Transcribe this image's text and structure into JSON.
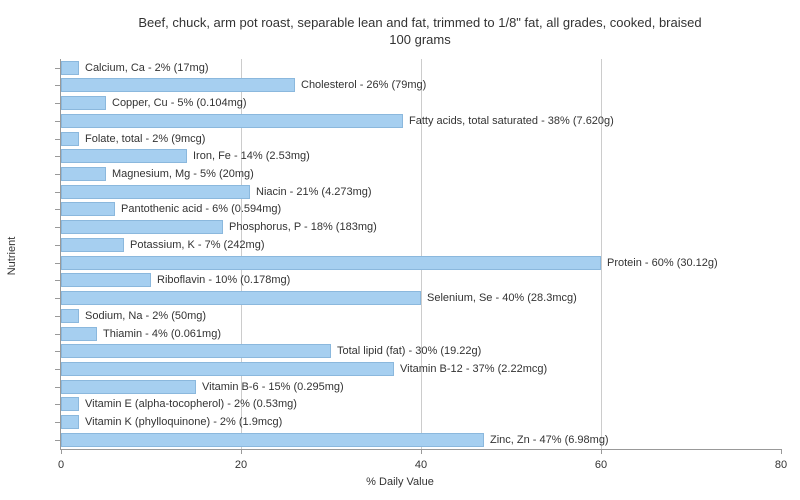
{
  "chart": {
    "type": "bar-horizontal",
    "title_line1": "Beef, chuck, arm pot roast, separable lean and fat, trimmed to 1/8\" fat, all grades, cooked, braised",
    "title_line2": "100 grams",
    "xlabel": "% Daily Value",
    "ylabel": "Nutrient",
    "xlim": [
      0,
      80
    ],
    "xtick_step": 20,
    "xticks": [
      0,
      20,
      40,
      60,
      80
    ],
    "bar_color": "#a6cff0",
    "bar_border_color": "#8bb8dd",
    "grid_color": "#cccccc",
    "axis_color": "#999999",
    "background_color": "#ffffff",
    "text_color": "#333333",
    "title_fontsize": 13,
    "label_fontsize": 11,
    "nutrients": [
      {
        "label": "Calcium, Ca - 2% (17mg)",
        "value": 2
      },
      {
        "label": "Cholesterol - 26% (79mg)",
        "value": 26
      },
      {
        "label": "Copper, Cu - 5% (0.104mg)",
        "value": 5
      },
      {
        "label": "Fatty acids, total saturated - 38% (7.620g)",
        "value": 38
      },
      {
        "label": "Folate, total - 2% (9mcg)",
        "value": 2
      },
      {
        "label": "Iron, Fe - 14% (2.53mg)",
        "value": 14
      },
      {
        "label": "Magnesium, Mg - 5% (20mg)",
        "value": 5
      },
      {
        "label": "Niacin - 21% (4.273mg)",
        "value": 21
      },
      {
        "label": "Pantothenic acid - 6% (0.594mg)",
        "value": 6
      },
      {
        "label": "Phosphorus, P - 18% (183mg)",
        "value": 18
      },
      {
        "label": "Potassium, K - 7% (242mg)",
        "value": 7
      },
      {
        "label": "Protein - 60% (30.12g)",
        "value": 60
      },
      {
        "label": "Riboflavin - 10% (0.178mg)",
        "value": 10
      },
      {
        "label": "Selenium, Se - 40% (28.3mcg)",
        "value": 40
      },
      {
        "label": "Sodium, Na - 2% (50mg)",
        "value": 2
      },
      {
        "label": "Thiamin - 4% (0.061mg)",
        "value": 4
      },
      {
        "label": "Total lipid (fat) - 30% (19.22g)",
        "value": 30
      },
      {
        "label": "Vitamin B-12 - 37% (2.22mcg)",
        "value": 37
      },
      {
        "label": "Vitamin B-6 - 15% (0.295mg)",
        "value": 15
      },
      {
        "label": "Vitamin E (alpha-tocopherol) - 2% (0.53mg)",
        "value": 2
      },
      {
        "label": "Vitamin K (phylloquinone) - 2% (1.9mcg)",
        "value": 2
      },
      {
        "label": "Zinc, Zn - 47% (6.98mg)",
        "value": 47
      }
    ]
  }
}
